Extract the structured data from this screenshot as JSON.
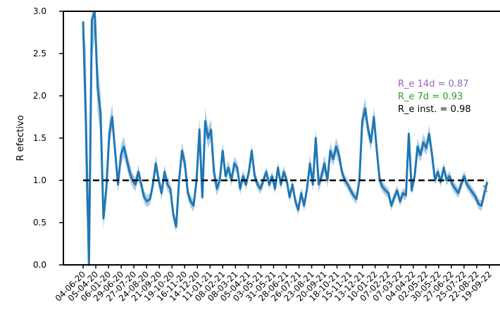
{
  "chart_data": {
    "type": "line",
    "title": "",
    "xlabel": "",
    "ylabel": "R efectivo",
    "ylim": [
      0,
      3
    ],
    "yticks": [
      "0.0",
      "0.5",
      "1.0",
      "1.5",
      "2.0",
      "2.5",
      "3.0"
    ],
    "x_tick_labels": [
      "04-06-20",
      "05-04-20",
      "06-01-20",
      "29-06-20",
      "27-07-20",
      "24-08-20",
      "21-09-20",
      "19-10-20",
      "16-11-20",
      "14-12-20",
      "11-01-21",
      "08-02-21",
      "08-03-21",
      "05-04-21",
      "03-05-21",
      "31-05-21",
      "28-06-21",
      "26-07-21",
      "23-08-21",
      "20-09-21",
      "18-10-21",
      "15-11-21",
      "13-12-21",
      "10-01-22",
      "07-02-22",
      "07-03-22",
      "04-04-22",
      "02-05-22",
      "30-05-22",
      "27-06-22",
      "25-07-22",
      "22-08-22",
      "19-09-22"
    ],
    "threshold": 1.0,
    "series": [
      {
        "values": [
          2.88,
          1.65,
          0.0,
          2.9,
          3.0,
          2.1,
          1.8,
          0.55,
          0.9,
          1.55,
          1.75,
          1.35,
          0.95,
          1.3,
          1.4,
          1.25,
          1.1,
          1.0,
          0.95,
          1.1,
          0.95,
          0.8,
          0.75,
          0.78,
          0.95,
          1.2,
          1.0,
          0.85,
          1.1,
          0.95,
          0.9,
          0.6,
          0.45,
          1.0,
          1.35,
          1.2,
          0.85,
          0.75,
          0.7,
          1.0,
          1.6,
          0.8,
          1.7,
          1.5,
          1.6,
          1.1,
          0.9,
          1.0,
          1.35,
          1.05,
          1.15,
          1.0,
          1.2,
          1.15,
          0.9,
          1.05,
          0.95,
          1.1,
          1.35,
          1.05,
          0.95,
          0.9,
          1.0,
          1.1,
          0.95,
          1.05,
          0.9,
          1.15,
          0.95,
          1.1,
          1.0,
          0.8,
          0.95,
          0.75,
          0.65,
          0.85,
          0.7,
          0.9,
          1.2,
          0.95,
          1.5,
          0.95,
          1.05,
          1.2,
          1.0,
          1.35,
          1.25,
          1.4,
          1.3,
          1.1,
          1.0,
          0.95,
          0.88,
          0.82,
          0.78,
          1.0,
          1.7,
          1.85,
          1.6,
          1.45,
          1.75,
          1.35,
          1.0,
          0.92,
          0.88,
          0.85,
          0.7,
          0.8,
          0.88,
          0.75,
          0.85,
          0.82,
          1.55,
          0.88,
          1.05,
          1.4,
          1.3,
          1.45,
          1.38,
          1.55,
          1.3,
          1.0,
          1.1,
          0.98,
          1.15,
          1.0,
          1.05,
          0.95,
          0.9,
          0.85,
          0.95,
          1.05,
          0.95,
          0.9,
          0.85,
          0.8,
          0.72,
          0.7,
          0.85,
          0.98
        ],
        "band_half_width": [
          0.0,
          0.9,
          0.0,
          0.5,
          0.3,
          0.3,
          0.25,
          0.12,
          0.15,
          0.15,
          0.15,
          0.12,
          0.1,
          0.12,
          0.12,
          0.1,
          0.1,
          0.08,
          0.08,
          0.08,
          0.08,
          0.07,
          0.07,
          0.07,
          0.08,
          0.1,
          0.08,
          0.08,
          0.08,
          0.08,
          0.07,
          0.07,
          0.07,
          0.08,
          0.1,
          0.1,
          0.08,
          0.07,
          0.07,
          0.1,
          0.15,
          0.08,
          0.15,
          0.12,
          0.12,
          0.1,
          0.08,
          0.08,
          0.1,
          0.08,
          0.08,
          0.07,
          0.08,
          0.07,
          0.07,
          0.07,
          0.06,
          0.07,
          0.08,
          0.07,
          0.06,
          0.06,
          0.06,
          0.06,
          0.06,
          0.06,
          0.06,
          0.07,
          0.06,
          0.07,
          0.06,
          0.06,
          0.07,
          0.06,
          0.06,
          0.07,
          0.06,
          0.07,
          0.1,
          0.08,
          0.12,
          0.08,
          0.08,
          0.1,
          0.08,
          0.1,
          0.08,
          0.1,
          0.1,
          0.07,
          0.06,
          0.06,
          0.06,
          0.06,
          0.06,
          0.08,
          0.12,
          0.12,
          0.1,
          0.1,
          0.12,
          0.1,
          0.06,
          0.06,
          0.06,
          0.06,
          0.06,
          0.06,
          0.06,
          0.06,
          0.06,
          0.06,
          0.1,
          0.06,
          0.06,
          0.1,
          0.08,
          0.1,
          0.08,
          0.1,
          0.08,
          0.06,
          0.06,
          0.06,
          0.06,
          0.06,
          0.06,
          0.06,
          0.06,
          0.06,
          0.06,
          0.06,
          0.06,
          0.06,
          0.06,
          0.06,
          0.06,
          0.06,
          0.06,
          0.06
        ]
      }
    ],
    "annotations": [
      {
        "text": "R_e 14d = 0.87",
        "color": "#9467bd"
      },
      {
        "text": "R_e 7d = 0.93",
        "color": "#2ca02c"
      },
      {
        "text": "R_e inst. = 0.98",
        "color": "#000000"
      }
    ],
    "colors": {
      "line": "#1f77b4",
      "band": "#a6c8e0",
      "threshold": "#000000",
      "end_marker_14d": "#9467bd",
      "end_marker_7d": "#2ca02c"
    },
    "grid": false,
    "legend": "none"
  }
}
